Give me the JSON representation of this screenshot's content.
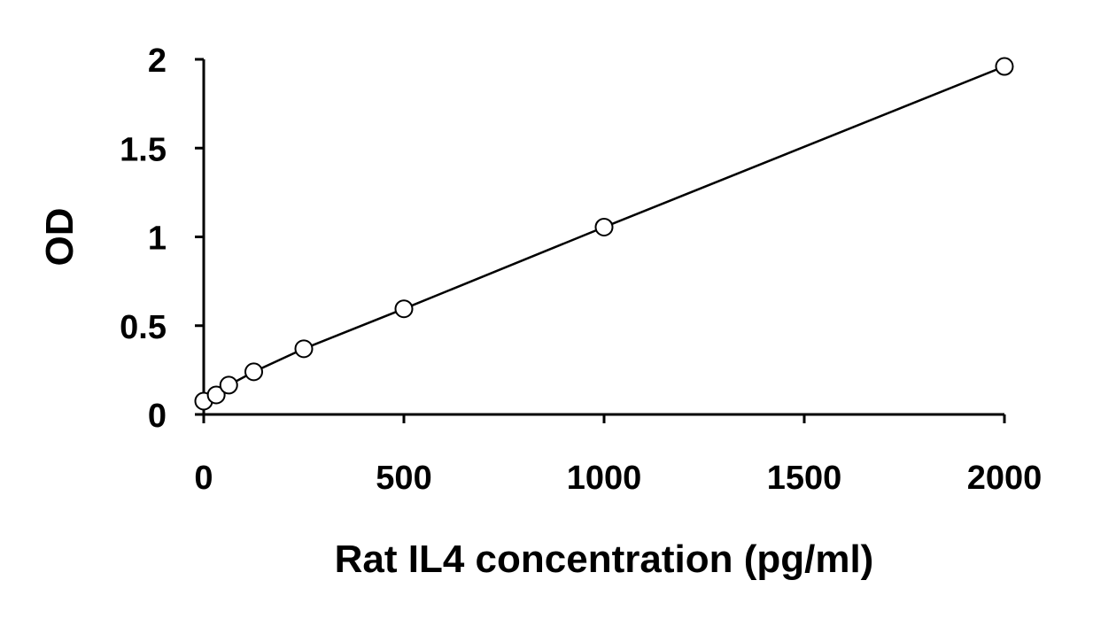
{
  "chart_data": {
    "type": "scatter",
    "xlabel": "Rat IL4 concentration (pg/ml)",
    "ylabel": "OD",
    "xlim": [
      0,
      2000
    ],
    "ylim": [
      0,
      2
    ],
    "x_ticks": [
      0,
      500,
      1000,
      1500,
      2000
    ],
    "x_tick_labels": [
      "0",
      "500",
      "1000",
      "1500",
      "2000"
    ],
    "y_ticks": [
      0,
      0.5,
      1,
      1.5,
      2
    ],
    "y_tick_labels": [
      "0",
      "0.5",
      "1",
      "1.5",
      "2"
    ],
    "grid": false,
    "legend": "none",
    "trendline": true,
    "colors": {
      "line": "#000000",
      "marker_fill": "#ffffff",
      "marker_stroke": "#000000"
    },
    "x": [
      0,
      31.25,
      62.5,
      125,
      250,
      500,
      1000,
      2000
    ],
    "y": [
      0.075,
      0.11,
      0.165,
      0.24,
      0.37,
      0.595,
      1.055,
      1.96
    ]
  }
}
